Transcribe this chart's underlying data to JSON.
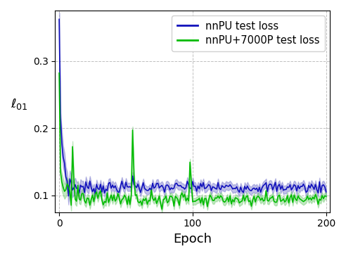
{
  "title": "",
  "xlabel": "Epoch",
  "ylabel": "$\\ell_{01}$",
  "xlim": [
    -3,
    203
  ],
  "ylim": [
    0.075,
    0.375
  ],
  "yticks": [
    0.1,
    0.2,
    0.3
  ],
  "xticks": [
    0,
    100,
    200
  ],
  "blue_color": "#1111bb",
  "blue_fill_color": "#7777cc",
  "green_color": "#00bb00",
  "green_fill_color": "#77cc77",
  "n_epochs": 201,
  "legend_labels": [
    "nnPU test loss",
    "nnPU+7000P test loss"
  ],
  "figsize": [
    4.92,
    3.64
  ],
  "dpi": 100
}
